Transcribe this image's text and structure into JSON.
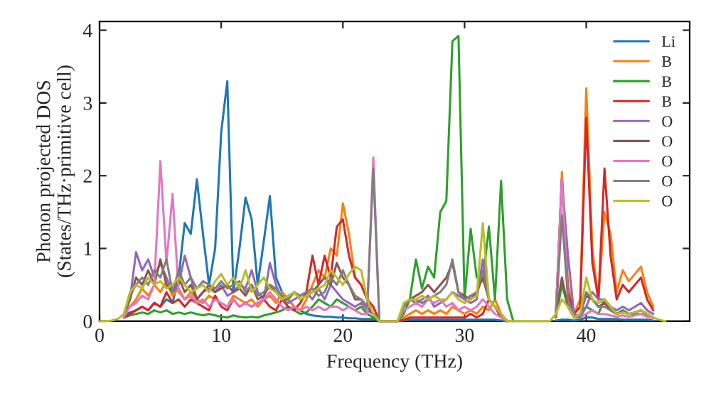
{
  "chart_data": {
    "type": "line",
    "xlabel": "Frequency (THz)",
    "ylabel": "Phonon projected DOS\n(States/THz·primitive cell)",
    "x": [
      0,
      0.5,
      1,
      1.5,
      2,
      2.5,
      3,
      3.5,
      4,
      4.5,
      5,
      5.5,
      6,
      6.5,
      7,
      7.5,
      8,
      8.5,
      9,
      9.5,
      10,
      10.5,
      11,
      11.5,
      12,
      12.5,
      13,
      13.5,
      14,
      14.5,
      15,
      15.5,
      16,
      16.5,
      17,
      17.5,
      18,
      18.5,
      19,
      19.5,
      20,
      20.5,
      21,
      21.5,
      22,
      22.5,
      23,
      23.5,
      24,
      24.5,
      25,
      25.5,
      26,
      26.5,
      27,
      27.5,
      28,
      28.5,
      29,
      29.5,
      30,
      30.5,
      31,
      31.5,
      32,
      32.5,
      33,
      33.5,
      34,
      34.5,
      35,
      35.5,
      36,
      36.5,
      37,
      37.5,
      38,
      38.5,
      39,
      39.5,
      40,
      40.5,
      41,
      41.5,
      42,
      42.5,
      43,
      43.5,
      44,
      44.5,
      45,
      45.5,
      46,
      46.5
    ],
    "xlim": [
      0,
      48.5
    ],
    "ylim": [
      0,
      4.12
    ],
    "xticks": [
      0,
      10,
      20,
      30,
      40
    ],
    "yticks": [
      0,
      1,
      2,
      3,
      4
    ],
    "grid": false,
    "legend": "top right",
    "marker": "none",
    "line_style": "solid",
    "series": [
      {
        "name": "Li",
        "color": "#1f77b4",
        "values": [
          null,
          null,
          null,
          null,
          0.08,
          0.12,
          0.15,
          0.2,
          0.15,
          0.25,
          0.2,
          0.3,
          0.25,
          0.6,
          1.35,
          1.2,
          1.95,
          1.2,
          0.5,
          1.0,
          2.6,
          3.3,
          0.4,
          1.0,
          1.7,
          1.4,
          0.5,
          1.1,
          1.72,
          0.6,
          0.4,
          0.3,
          0.2,
          0.15,
          0.1,
          0.08,
          0.07,
          0.06,
          0.06,
          0.05,
          0.05,
          0.04,
          0.04,
          0.03,
          0.03,
          0.03,
          0,
          0,
          0,
          0,
          0.01,
          0.02,
          0.02,
          0.02,
          0.02,
          0.02,
          0.02,
          0.02,
          0.02,
          0.02,
          0.02,
          0.02,
          0.02,
          0.02,
          0.02,
          0.02,
          0.01,
          0,
          null,
          null,
          null,
          null,
          null,
          null,
          null,
          0.01,
          0.02,
          0.02,
          0.01,
          0.02,
          0.05,
          0.05,
          0.03,
          0.03,
          0.03,
          0.03,
          0.02,
          0.02,
          0.02,
          0.02,
          0.02,
          0.01,
          null,
          null
        ]
      },
      {
        "name": "B",
        "color": "#ff7f0e",
        "values": [
          null,
          null,
          null,
          null,
          0.1,
          0.2,
          0.3,
          0.45,
          0.35,
          0.5,
          0.4,
          0.55,
          0.35,
          0.45,
          0.3,
          0.4,
          0.3,
          0.25,
          0.35,
          0.3,
          0.25,
          0.2,
          0.35,
          0.3,
          0.25,
          0.3,
          0.2,
          0.3,
          0.35,
          0.25,
          0.4,
          0.3,
          0.2,
          0.15,
          0.3,
          0.5,
          0.7,
          0.6,
          1.0,
          0.9,
          1.62,
          1.2,
          0.6,
          0.5,
          0.3,
          0.1,
          0,
          0,
          0,
          0,
          0.05,
          0.1,
          0.15,
          0.1,
          0.15,
          0.1,
          0.15,
          0.1,
          0.2,
          0.15,
          0.1,
          0.15,
          0.1,
          0.2,
          0.15,
          0.3,
          0.1,
          0,
          null,
          null,
          null,
          null,
          null,
          null,
          null,
          0.05,
          2.05,
          0.5,
          0.1,
          0.3,
          3.2,
          1.0,
          0.3,
          1.5,
          1.2,
          0.4,
          0.7,
          0.55,
          0.65,
          0.75,
          0.4,
          0.2,
          null,
          null
        ]
      },
      {
        "name": "B",
        "color": "#2ca02c",
        "values": [
          null,
          null,
          null,
          null,
          0.05,
          0.08,
          0.1,
          0.12,
          0.1,
          0.15,
          0.12,
          0.15,
          0.1,
          0.12,
          0.1,
          0.12,
          0.1,
          0.08,
          0.1,
          0.08,
          0.06,
          0.05,
          0.08,
          0.06,
          0.05,
          0.06,
          0.05,
          0.08,
          0.1,
          0.12,
          0.15,
          0.2,
          0.15,
          0.1,
          0.12,
          0.2,
          0.3,
          0.25,
          0.2,
          0.3,
          0.25,
          0.2,
          0.15,
          0.2,
          0.1,
          0.05,
          0,
          0,
          0,
          0,
          0.1,
          0.3,
          0.85,
          0.45,
          0.75,
          0.6,
          1.5,
          1.65,
          3.85,
          3.92,
          0.3,
          1.27,
          0.6,
          0.55,
          1.3,
          0.3,
          1.93,
          0.3,
          0,
          null,
          null,
          null,
          null,
          null,
          null,
          0.05,
          0.5,
          0.2,
          0.05,
          0.1,
          0.2,
          0.15,
          0.1,
          0.3,
          0.2,
          0.1,
          0.15,
          0.1,
          0.1,
          0.1,
          0.08,
          0.05,
          null,
          null
        ]
      },
      {
        "name": "B",
        "color": "#d62728",
        "values": [
          null,
          null,
          null,
          null,
          0.05,
          0.1,
          0.15,
          0.2,
          0.15,
          0.25,
          0.2,
          0.4,
          0.25,
          0.3,
          0.2,
          0.3,
          0.25,
          0.2,
          0.15,
          0.35,
          0.2,
          0.15,
          0.3,
          0.2,
          0.25,
          0.2,
          0.25,
          0.3,
          0.2,
          0.15,
          0.3,
          0.2,
          0.15,
          0.25,
          0.4,
          0.9,
          0.5,
          0.9,
          0.6,
          1.3,
          1.4,
          0.9,
          0.6,
          0.5,
          0.3,
          0.2,
          0,
          0,
          0,
          0,
          0.02,
          0.05,
          0.05,
          0.05,
          0.05,
          0.05,
          0.05,
          0.05,
          0.05,
          0.05,
          0.05,
          0.1,
          0.05,
          0.1,
          0.3,
          0.2,
          0.05,
          0,
          null,
          null,
          null,
          null,
          null,
          null,
          null,
          0.05,
          1.95,
          0.4,
          0.1,
          0.2,
          2.8,
          0.8,
          0.3,
          2.1,
          0.9,
          0.3,
          0.5,
          0.4,
          0.5,
          0.6,
          0.3,
          0.15,
          null,
          null
        ]
      },
      {
        "name": "O",
        "color": "#9467bd",
        "values": [
          null,
          null,
          null,
          null,
          0.08,
          0.3,
          0.95,
          0.7,
          0.85,
          0.6,
          0.8,
          0.6,
          0.4,
          0.5,
          0.9,
          0.6,
          0.3,
          0.4,
          0.45,
          0.4,
          0.5,
          0.35,
          0.4,
          0.5,
          0.45,
          0.7,
          0.4,
          0.3,
          0.8,
          0.5,
          0.3,
          0.25,
          0.3,
          0.35,
          0.4,
          0.3,
          0.45,
          0.3,
          0.5,
          0.4,
          0.3,
          0.25,
          0.2,
          0.25,
          0.15,
          0.1,
          0,
          0,
          0,
          0,
          0.2,
          0.3,
          0.25,
          0.3,
          0.35,
          0.2,
          0.25,
          0.3,
          0.4,
          0.35,
          0.3,
          0.25,
          0.3,
          0.85,
          0.3,
          0.2,
          0.1,
          0,
          null,
          null,
          null,
          null,
          null,
          null,
          null,
          0.1,
          1.95,
          0.9,
          0.1,
          0.05,
          0.2,
          0.4,
          0.3,
          0.3,
          0.2,
          0.15,
          0.2,
          0.15,
          0.2,
          0.25,
          0.15,
          0.1,
          null,
          null
        ]
      },
      {
        "name": "O",
        "color": "#8c564b",
        "values": [
          null,
          null,
          null,
          null,
          0.08,
          0.3,
          0.6,
          0.5,
          0.7,
          0.5,
          0.85,
          0.5,
          0.4,
          0.6,
          0.4,
          0.5,
          0.3,
          0.4,
          0.5,
          0.4,
          0.45,
          0.5,
          0.4,
          0.45,
          0.35,
          0.5,
          0.3,
          0.35,
          0.5,
          0.4,
          0.3,
          0.3,
          0.4,
          0.3,
          0.35,
          0.4,
          0.5,
          0.6,
          0.5,
          0.8,
          0.6,
          0.5,
          0.3,
          0.3,
          0.2,
          0.1,
          0,
          0,
          0,
          0,
          0.2,
          0.3,
          0.35,
          0.4,
          0.5,
          0.4,
          0.5,
          0.6,
          0.8,
          0.4,
          0.35,
          0.3,
          0.4,
          0.6,
          0.3,
          0.2,
          0.1,
          0,
          null,
          null,
          null,
          null,
          null,
          null,
          null,
          0.1,
          0.6,
          0.2,
          0.05,
          0.1,
          0.35,
          0.3,
          0.2,
          0.25,
          0.15,
          0.1,
          0.12,
          0.1,
          0.12,
          0.15,
          0.1,
          0.05,
          null,
          null
        ]
      },
      {
        "name": "O",
        "color": "#e377c2",
        "values": [
          null,
          null,
          null,
          null,
          0.06,
          0.2,
          0.25,
          0.35,
          0.3,
          0.5,
          2.2,
          0.8,
          1.75,
          0.4,
          0.3,
          0.35,
          0.25,
          0.3,
          0.2,
          0.3,
          0.25,
          0.2,
          0.3,
          0.2,
          0.25,
          0.2,
          0.25,
          0.3,
          0.4,
          0.3,
          0.2,
          0.15,
          0.2,
          0.15,
          0.2,
          0.15,
          0.2,
          0.15,
          0.2,
          0.2,
          0.15,
          0.2,
          0.15,
          0.1,
          0.1,
          2.25,
          0,
          0,
          0,
          0,
          0.15,
          0.2,
          0.25,
          0.2,
          0.3,
          0.25,
          0.3,
          0.2,
          0.25,
          0.15,
          0.2,
          0.15,
          0.2,
          0.3,
          0.2,
          0.1,
          0.05,
          0,
          null,
          null,
          null,
          null,
          null,
          null,
          null,
          0.1,
          1.95,
          0.3,
          0.05,
          0.05,
          0.1,
          0.15,
          0.1,
          0.1,
          0.08,
          0.06,
          0.08,
          0.06,
          0.08,
          0.1,
          0.06,
          0.04,
          null,
          null
        ]
      },
      {
        "name": "O",
        "color": "#7f7f7f",
        "values": [
          null,
          null,
          null,
          null,
          0.1,
          0.35,
          0.5,
          0.6,
          0.5,
          0.7,
          0.6,
          0.85,
          0.4,
          0.7,
          0.5,
          0.6,
          0.45,
          0.55,
          0.5,
          0.45,
          0.55,
          0.45,
          0.5,
          0.55,
          0.4,
          0.5,
          0.35,
          0.4,
          0.5,
          0.45,
          0.35,
          0.3,
          0.4,
          0.35,
          0.4,
          0.45,
          0.35,
          0.4,
          0.6,
          0.5,
          0.7,
          0.5,
          0.35,
          0.3,
          0.2,
          2.1,
          0,
          0,
          0,
          0,
          0.2,
          0.3,
          0.3,
          0.25,
          0.3,
          0.35,
          0.4,
          0.5,
          0.85,
          0.4,
          0.3,
          0.35,
          0.4,
          0.7,
          0.3,
          0.2,
          0.1,
          0,
          null,
          null,
          null,
          null,
          null,
          null,
          null,
          0.05,
          1.45,
          0.3,
          0.05,
          0.05,
          0.4,
          0.3,
          0.2,
          0.2,
          0.15,
          0.1,
          0.12,
          0.1,
          0.12,
          0.15,
          0.1,
          0.05,
          null,
          null
        ]
      },
      {
        "name": "O",
        "color": "#bcbd22",
        "values": [
          0,
          0,
          0.01,
          0.03,
          0.1,
          0.4,
          0.5,
          0.45,
          0.6,
          0.5,
          0.55,
          0.45,
          0.5,
          0.6,
          0.5,
          0.4,
          0.45,
          0.5,
          0.4,
          0.55,
          0.65,
          0.5,
          0.6,
          0.45,
          0.7,
          0.4,
          0.5,
          0.6,
          0.45,
          0.4,
          0.3,
          0.35,
          0.4,
          0.3,
          0.35,
          0.4,
          0.45,
          0.5,
          0.7,
          0.6,
          0.5,
          0.65,
          0.75,
          0.7,
          0.3,
          0.1,
          0,
          0,
          0,
          0,
          0.25,
          0.3,
          0.3,
          0.35,
          0.3,
          0.35,
          0.3,
          0.3,
          0.4,
          0.3,
          0.25,
          0.3,
          0.35,
          1.35,
          0.3,
          0.2,
          0.1,
          0,
          0,
          0,
          0,
          0,
          0,
          0,
          0,
          0.1,
          0.3,
          0.2,
          0.05,
          0.1,
          0.6,
          0.3,
          0.25,
          0.3,
          0.2,
          0.1,
          0.12,
          0.1,
          0.12,
          0.15,
          0.1,
          0.05,
          0.02,
          0
        ]
      }
    ]
  }
}
